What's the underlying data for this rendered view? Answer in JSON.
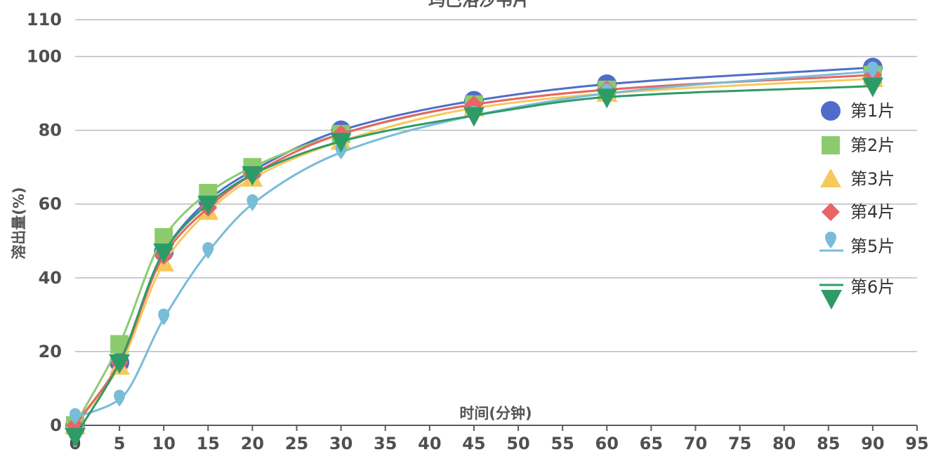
{
  "chart_data": {
    "type": "scatter",
    "title": "玛巴洛沙韦片",
    "xlabel": "时间(分钟)",
    "ylabel": "溶出量(%)",
    "xlim": [
      0,
      95
    ],
    "ylim": [
      0,
      110
    ],
    "x_ticks": [
      0,
      5,
      10,
      15,
      20,
      25,
      30,
      35,
      40,
      45,
      50,
      55,
      60,
      65,
      70,
      75,
      80,
      85,
      90,
      95
    ],
    "y_ticks": [
      0,
      20,
      40,
      60,
      80,
      100,
      110
    ],
    "grid": true,
    "legend_position": "right",
    "series": [
      {
        "name": "第1片",
        "color": "#4F6DC8",
        "marker": "circle",
        "points": [
          [
            0,
            0
          ],
          [
            5,
            17
          ],
          [
            10,
            47
          ],
          [
            15,
            61
          ],
          [
            20,
            69
          ],
          [
            30,
            80
          ],
          [
            45,
            88
          ],
          [
            60,
            92.5
          ],
          [
            90,
            97
          ]
        ]
      },
      {
        "name": "第2片",
        "color": "#8CCB6D",
        "marker": "square",
        "points": [
          [
            0,
            0
          ],
          [
            5,
            22
          ],
          [
            10,
            51
          ],
          [
            15,
            63
          ],
          [
            20,
            70
          ],
          [
            30,
            79
          ],
          [
            45,
            87
          ],
          [
            60,
            91
          ],
          [
            90,
            95
          ]
        ]
      },
      {
        "name": "第3片",
        "color": "#F6C95C",
        "marker": "triangle",
        "points": [
          [
            0,
            0
          ],
          [
            5,
            16
          ],
          [
            10,
            44
          ],
          [
            15,
            58
          ],
          [
            20,
            67
          ],
          [
            30,
            77
          ],
          [
            45,
            86
          ],
          [
            60,
            90
          ],
          [
            90,
            94
          ]
        ]
      },
      {
        "name": "第4片",
        "color": "#E96565",
        "marker": "diamond",
        "points": [
          [
            0,
            0
          ],
          [
            5,
            17
          ],
          [
            10,
            46
          ],
          [
            15,
            59
          ],
          [
            20,
            68
          ],
          [
            30,
            79
          ],
          [
            45,
            87
          ],
          [
            60,
            91
          ],
          [
            90,
            95
          ]
        ]
      },
      {
        "name": "第5片",
        "color": "#78BCD8",
        "marker": "pin",
        "points": [
          [
            0,
            2
          ],
          [
            5,
            7
          ],
          [
            10,
            29
          ],
          [
            15,
            47
          ],
          [
            20,
            60
          ],
          [
            30,
            74
          ],
          [
            45,
            84
          ],
          [
            60,
            90
          ],
          [
            90,
            96
          ]
        ]
      },
      {
        "name": "第6片",
        "color": "#2E9B67",
        "marker": "triangle-down",
        "points": [
          [
            0,
            -3
          ],
          [
            5,
            17
          ],
          [
            10,
            47
          ],
          [
            15,
            60
          ],
          [
            20,
            68
          ],
          [
            30,
            77
          ],
          [
            45,
            84
          ],
          [
            60,
            89
          ],
          [
            90,
            92
          ]
        ]
      }
    ]
  }
}
